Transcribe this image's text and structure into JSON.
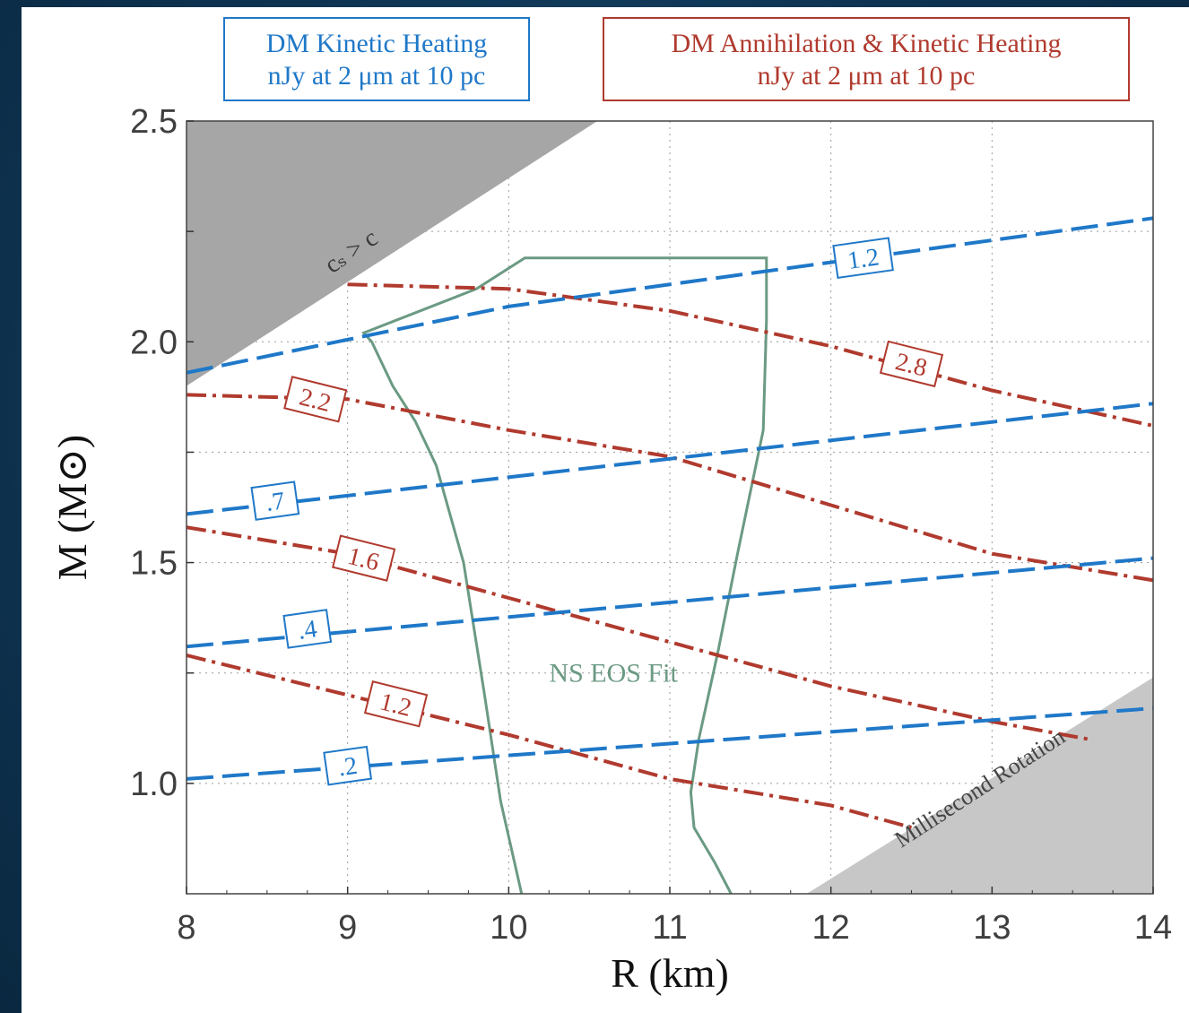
{
  "chart_data": {
    "type": "line",
    "xlabel": "R (km)",
    "ylabel": "M (M⊙)",
    "xlim": [
      8,
      14
    ],
    "ylim": [
      0.75,
      2.5
    ],
    "x_ticks": [
      8,
      9,
      10,
      11,
      12,
      13,
      14
    ],
    "y_ticks": [
      1.0,
      1.5,
      2.0,
      2.5
    ],
    "y_tick_labels": [
      "1.0",
      "1.5",
      "2.0",
      "2.5"
    ],
    "grid": true,
    "legend": {
      "kinetic": {
        "line1": "DM Kinetic Heating",
        "line2": "nJy at 2 μm at 10 pc",
        "color": "#1f78c8"
      },
      "annihilation": {
        "line1": "DM Annihilation & Kinetic Heating",
        "line2": "nJy at 2 μm at 10 pc",
        "color": "#b03a2e"
      }
    },
    "series_kinetic": [
      {
        "label": ".2",
        "label_at": [
          9.0,
          1.04
        ],
        "points": [
          [
            8.0,
            1.01
          ],
          [
            14.0,
            1.17
          ]
        ]
      },
      {
        "label": ".4",
        "label_at": [
          8.75,
          1.35
        ],
        "points": [
          [
            8.0,
            1.31
          ],
          [
            14.0,
            1.51
          ]
        ]
      },
      {
        "label": ".7",
        "label_at": [
          8.55,
          1.64
        ],
        "points": [
          [
            8.0,
            1.61
          ],
          [
            14.0,
            1.86
          ]
        ]
      },
      {
        "label": "1.2",
        "label_at": [
          12.2,
          2.19
        ],
        "points": [
          [
            8.0,
            1.93
          ],
          [
            10.0,
            2.08
          ],
          [
            12.0,
            2.18
          ],
          [
            14.0,
            2.28
          ]
        ]
      }
    ],
    "series_annihilation": [
      {
        "label": "1.2",
        "label_at": [
          9.3,
          1.18
        ],
        "points": [
          [
            8.0,
            1.29
          ],
          [
            9.0,
            1.2
          ],
          [
            10.0,
            1.11
          ],
          [
            11.0,
            1.01
          ],
          [
            12.0,
            0.95
          ],
          [
            12.5,
            0.9
          ]
        ]
      },
      {
        "label": "1.6",
        "label_at": [
          9.1,
          1.51
        ],
        "points": [
          [
            8.0,
            1.58
          ],
          [
            9.0,
            1.52
          ],
          [
            10.0,
            1.42
          ],
          [
            11.0,
            1.32
          ],
          [
            12.0,
            1.22
          ],
          [
            13.0,
            1.14
          ],
          [
            13.6,
            1.1
          ]
        ]
      },
      {
        "label": "2.2",
        "label_at": [
          8.8,
          1.87
        ],
        "points": [
          [
            8.0,
            1.88
          ],
          [
            9.0,
            1.87
          ],
          [
            10.0,
            1.8
          ],
          [
            11.0,
            1.74
          ],
          [
            12.0,
            1.63
          ],
          [
            13.0,
            1.52
          ],
          [
            14.0,
            1.46
          ]
        ]
      },
      {
        "label": "2.8",
        "label_at": [
          12.5,
          1.95
        ],
        "points": [
          [
            9.0,
            2.13
          ],
          [
            10.0,
            2.12
          ],
          [
            11.0,
            2.07
          ],
          [
            12.0,
            1.99
          ],
          [
            13.0,
            1.89
          ],
          [
            14.0,
            1.81
          ]
        ]
      }
    ],
    "eos_fit": {
      "label": "NS EOS Fit",
      "label_at": [
        10.65,
        1.23
      ],
      "color": "#6b9a83",
      "points": [
        [
          10.08,
          0.75
        ],
        [
          9.95,
          0.96
        ],
        [
          9.85,
          1.2
        ],
        [
          9.72,
          1.5
        ],
        [
          9.55,
          1.72
        ],
        [
          9.42,
          1.82
        ],
        [
          9.28,
          1.9
        ],
        [
          9.15,
          2.0
        ],
        [
          9.1,
          2.02
        ],
        [
          9.45,
          2.07
        ],
        [
          9.8,
          2.12
        ],
        [
          10.1,
          2.19
        ],
        [
          11.6,
          2.19
        ],
        [
          11.6,
          2.05
        ],
        [
          11.58,
          1.8
        ],
        [
          11.42,
          1.52
        ],
        [
          11.3,
          1.3
        ],
        [
          11.18,
          1.1
        ],
        [
          11.13,
          0.98
        ],
        [
          11.15,
          0.9
        ],
        [
          11.28,
          0.82
        ],
        [
          11.38,
          0.75
        ]
      ]
    },
    "regions": {
      "causality": {
        "label": "cₛ > c",
        "color": "#a6a6a6",
        "points": [
          [
            8.0,
            1.9
          ],
          [
            10.55,
            2.5
          ],
          [
            8.0,
            2.5
          ]
        ]
      },
      "rotation": {
        "label": "Millisecond Rotation",
        "color": "#c7c7c7",
        "points": [
          [
            11.85,
            0.75
          ],
          [
            14.0,
            1.24
          ],
          [
            14.0,
            0.75
          ]
        ]
      }
    }
  }
}
